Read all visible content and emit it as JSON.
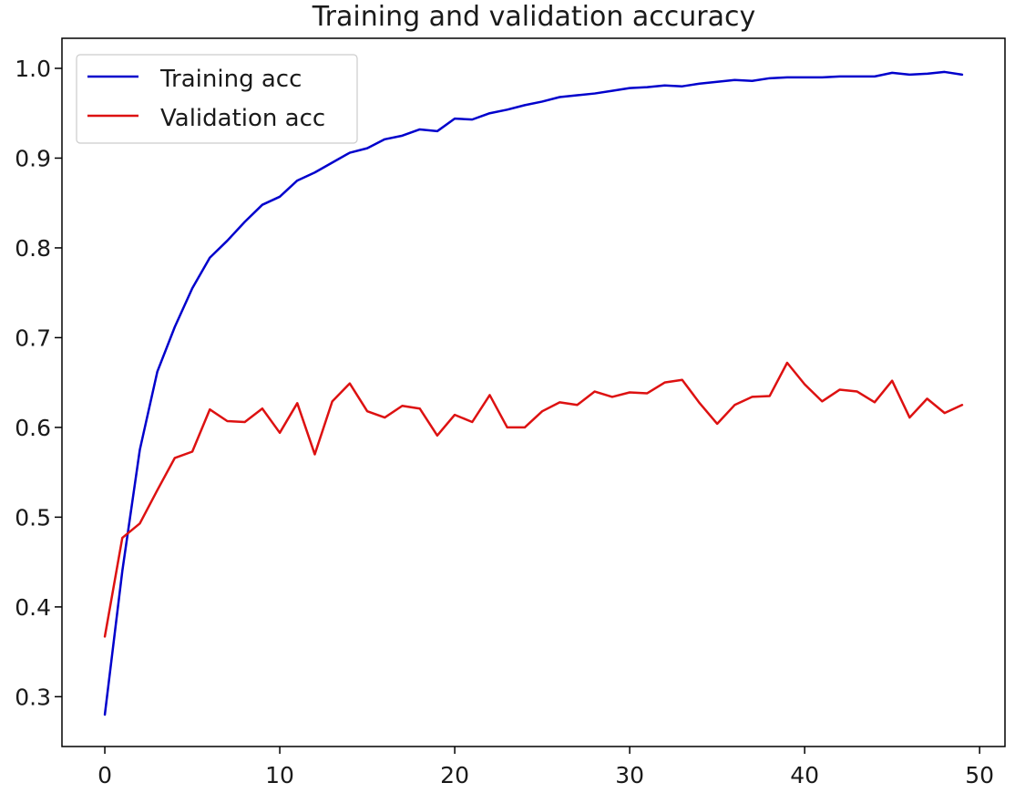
{
  "chart_data": {
    "type": "line",
    "title": "Training and validation accuracy",
    "xlabel": "",
    "ylabel": "",
    "xlim": [
      -2.45,
      51.45
    ],
    "ylim": [
      0.2445,
      1.0335
    ],
    "x_ticks": [
      0,
      10,
      20,
      30,
      40,
      50
    ],
    "y_ticks": [
      0.3,
      0.4,
      0.5,
      0.6,
      0.7,
      0.8,
      0.9,
      1.0
    ],
    "grid": false,
    "legend_position": "upper-left",
    "x": [
      0,
      1,
      2,
      3,
      4,
      5,
      6,
      7,
      8,
      9,
      10,
      11,
      12,
      13,
      14,
      15,
      16,
      17,
      18,
      19,
      20,
      21,
      22,
      23,
      24,
      25,
      26,
      27,
      28,
      29,
      30,
      31,
      32,
      33,
      34,
      35,
      36,
      37,
      38,
      39,
      40,
      41,
      42,
      43,
      44,
      45,
      46,
      47,
      48,
      49
    ],
    "series": [
      {
        "name": "Training acc",
        "color": "#0000cc",
        "values": [
          0.28,
          0.44,
          0.575,
          0.662,
          0.712,
          0.755,
          0.789,
          0.808,
          0.829,
          0.848,
          0.857,
          0.875,
          0.884,
          0.895,
          0.906,
          0.911,
          0.921,
          0.925,
          0.932,
          0.93,
          0.944,
          0.943,
          0.95,
          0.954,
          0.959,
          0.963,
          0.968,
          0.97,
          0.972,
          0.975,
          0.978,
          0.979,
          0.981,
          0.98,
          0.983,
          0.985,
          0.987,
          0.986,
          0.989,
          0.99,
          0.99,
          0.99,
          0.991,
          0.991,
          0.991,
          0.995,
          0.993,
          0.994,
          0.996,
          0.993
        ]
      },
      {
        "name": "Validation acc",
        "color": "#dd1111",
        "values": [
          0.367,
          0.477,
          0.493,
          0.53,
          0.566,
          0.573,
          0.62,
          0.607,
          0.606,
          0.621,
          0.594,
          0.627,
          0.57,
          0.629,
          0.649,
          0.618,
          0.611,
          0.624,
          0.621,
          0.591,
          0.614,
          0.606,
          0.636,
          0.6,
          0.6,
          0.618,
          0.628,
          0.625,
          0.64,
          0.634,
          0.639,
          0.638,
          0.65,
          0.653,
          0.627,
          0.604,
          0.625,
          0.634,
          0.635,
          0.672,
          0.648,
          0.629,
          0.642,
          0.64,
          0.628,
          0.652,
          0.611,
          0.632,
          0.616,
          0.625
        ]
      }
    ]
  }
}
